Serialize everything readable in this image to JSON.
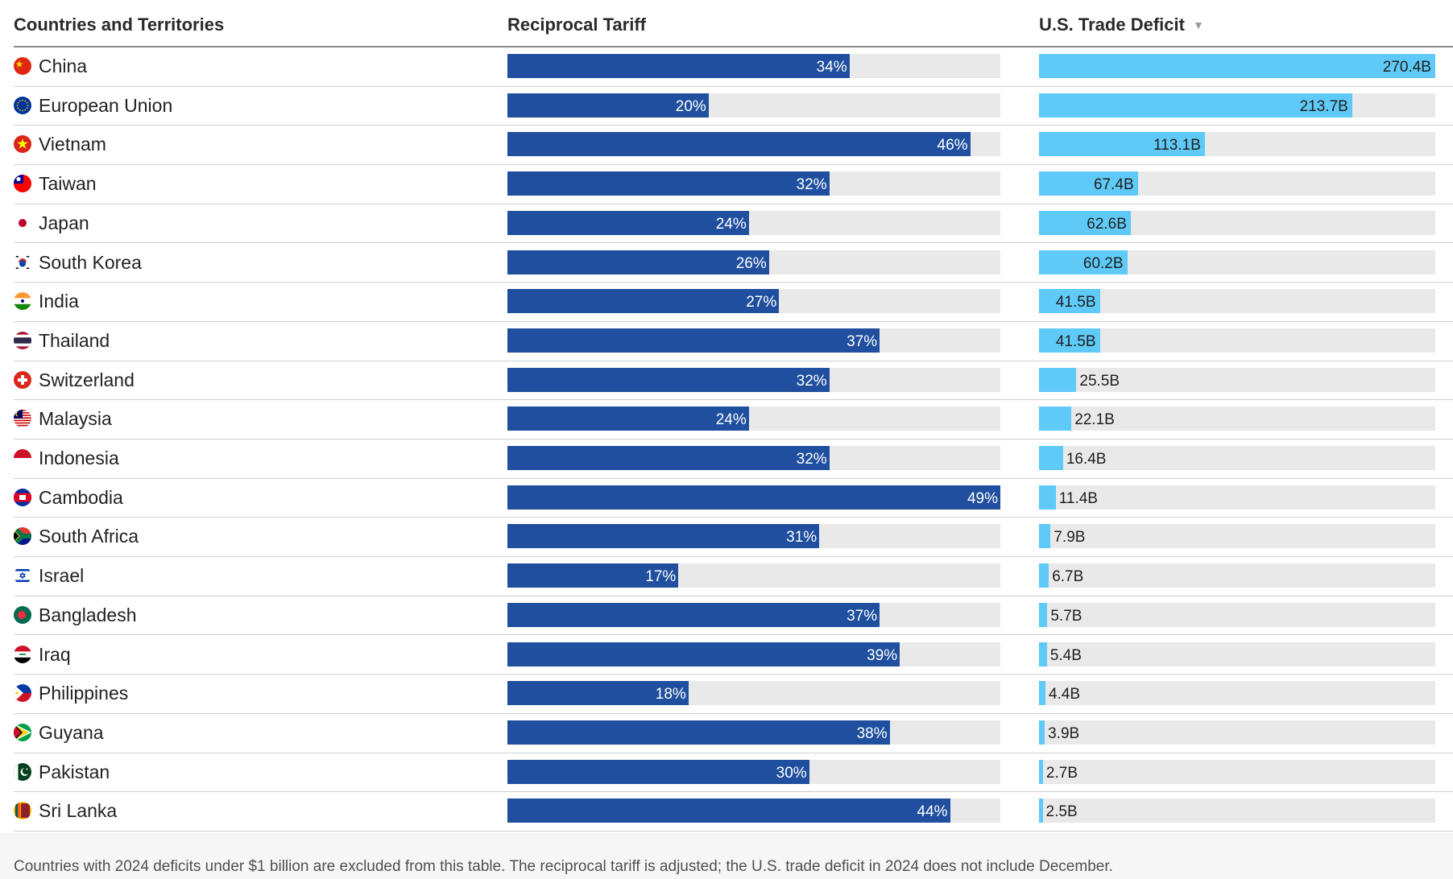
{
  "table": {
    "headers": {
      "country": "Countries and Territories",
      "tariff": "Reciprocal Tariff",
      "deficit": "U.S. Trade Deficit"
    },
    "sort_icon": "sort-descending-icon",
    "footnote": "Countries with 2024 deficits under $1 billion are excluded from this table. The reciprocal tariff is adjusted; the U.S. trade deficit in 2024 does not include December."
  },
  "colors": {
    "tariff_bar": "#1f4f9e",
    "deficit_bar": "#5fcaf7",
    "track": "#e9e9e9"
  },
  "chart_data": {
    "type": "bar",
    "orientation": "horizontal",
    "categories": [
      "China",
      "European Union",
      "Vietnam",
      "Taiwan",
      "Japan",
      "South Korea",
      "India",
      "Thailand",
      "Switzerland",
      "Malaysia",
      "Indonesia",
      "Cambodia",
      "South Africa",
      "Israel",
      "Bangladesh",
      "Iraq",
      "Philippines",
      "Guyana",
      "Pakistan",
      "Sri Lanka"
    ],
    "series": [
      {
        "values": [
          34,
          20,
          46,
          32,
          24,
          26,
          27,
          37,
          32,
          24,
          32,
          49,
          31,
          17,
          37,
          39,
          18,
          38,
          30,
          44
        ],
        "labels": [
          "34%",
          "20%",
          "46%",
          "32%",
          "24%",
          "26%",
          "27%",
          "37%",
          "32%",
          "24%",
          "32%",
          "49%",
          "31%",
          "17%",
          "37%",
          "39%",
          "18%",
          "38%",
          "30%",
          "44%"
        ],
        "max": 49
      },
      {
        "values": [
          270.4,
          213.7,
          113.1,
          67.4,
          62.6,
          60.2,
          41.5,
          41.5,
          25.5,
          22.1,
          16.4,
          11.4,
          7.9,
          6.7,
          5.7,
          5.4,
          4.4,
          3.9,
          2.7,
          2.5
        ],
        "labels": [
          "270.4B",
          "213.7B",
          "113.1B",
          "67.4B",
          "62.6B",
          "60.2B",
          "41.5B",
          "41.5B",
          "25.5B",
          "22.1B",
          "16.4B",
          "11.4B",
          "7.9B",
          "6.7B",
          "5.7B",
          "5.4B",
          "4.4B",
          "3.9B",
          "2.7B",
          "2.5B"
        ],
        "max": 270.4
      }
    ],
    "flags": [
      "china-flag-icon",
      "european-union-flag-icon",
      "vietnam-flag-icon",
      "taiwan-flag-icon",
      "japan-flag-icon",
      "south-korea-flag-icon",
      "india-flag-icon",
      "thailand-flag-icon",
      "switzerland-flag-icon",
      "malaysia-flag-icon",
      "indonesia-flag-icon",
      "cambodia-flag-icon",
      "south-africa-flag-icon",
      "israel-flag-icon",
      "bangladesh-flag-icon",
      "iraq-flag-icon",
      "philippines-flag-icon",
      "guyana-flag-icon",
      "pakistan-flag-icon",
      "sri-lanka-flag-icon"
    ],
    "legend": "none",
    "grid": false
  }
}
